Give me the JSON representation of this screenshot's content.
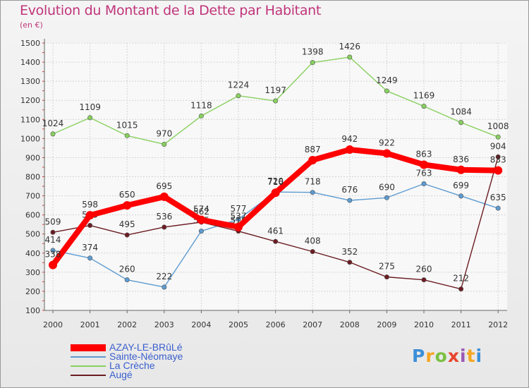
{
  "title": "Evolution du Montant de la Dette par Habitant",
  "subtitle": "(en €)",
  "brand": {
    "text": "Proxiti",
    "colors": [
      "#3b8fd9",
      "#f5a623",
      "#7bc043",
      "#e8452c",
      "#9b59b6",
      "#f5a623",
      "#3b8fd9"
    ]
  },
  "chart_data": {
    "type": "line",
    "x": [
      "2000",
      "2001",
      "2002",
      "2003",
      "2004",
      "2005",
      "2006",
      "2007",
      "2008",
      "2009",
      "2010",
      "2011",
      "2012"
    ],
    "ylim": [
      100,
      1500
    ],
    "yticks": [
      "100",
      "200",
      "300",
      "400",
      "500",
      "600",
      "700",
      "800",
      "900",
      "1000",
      "1100",
      "1200",
      "1300",
      "1400",
      "1500"
    ],
    "grid": true,
    "legend_position": "bottom-left",
    "series": [
      {
        "name": "La Crèche",
        "color": "#88d05e",
        "values": [
          1024,
          1109,
          1015,
          970,
          1118,
          1224,
          1197,
          1398,
          1426,
          1249,
          1169,
          1084,
          1008
        ]
      },
      {
        "name": "Sainte-Néomaye",
        "color": "#5d9bd0",
        "values": [
          414,
          374,
          260,
          222,
          515,
          577,
          720,
          718,
          676,
          690,
          763,
          699,
          635
        ]
      },
      {
        "name": "Augé",
        "color": "#6b1c22",
        "values": [
          509,
          545,
          495,
          536,
          562,
          515,
          461,
          408,
          352,
          275,
          260,
          212,
          904
        ]
      },
      {
        "name": "AZAY-LE-BRûLé",
        "color": "#ff0000",
        "values": [
          338,
          598,
          650,
          695,
          574,
          537,
          716,
          887,
          942,
          922,
          863,
          836,
          833
        ]
      }
    ]
  }
}
